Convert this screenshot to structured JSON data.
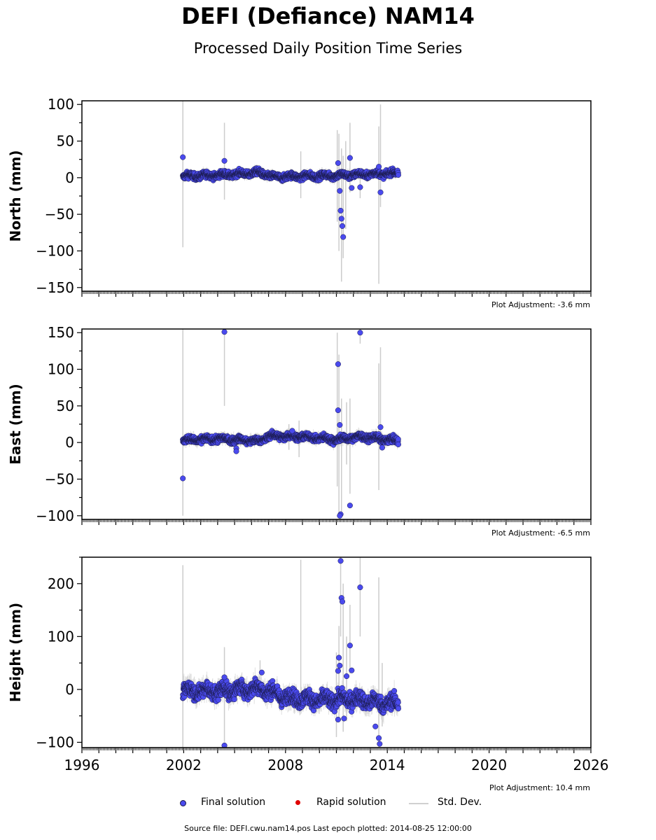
{
  "title": "DEFI (Defiance) NAM14",
  "subtitle": "Processed Daily Position Time Series",
  "source_note": "Source file: DEFI.cwu.nam14.pos  Last epoch plotted: 2014-08-25 12:00:00",
  "colors": {
    "final": "#4a4aee",
    "rapid": "#e00000",
    "stddev": "#cccccc",
    "edge": "#1a1a4a"
  },
  "legend": {
    "final": "Final solution",
    "rapid": "Rapid solution",
    "stddev": "Std. Dev."
  },
  "chart_data": [
    {
      "type": "scatter",
      "panel": "north",
      "ylabel": "North (mm)",
      "adjustment": "Plot Adjustment: -3.6 mm",
      "xlim": [
        1996,
        2026
      ],
      "ylim": [
        -155,
        105
      ],
      "yticks": [
        -150,
        -100,
        -50,
        0,
        50,
        100
      ],
      "data_start": 2001.95,
      "data_end": 2014.65,
      "baseline": [
        [
          2001.95,
          2
        ],
        [
          2004.5,
          4
        ],
        [
          2006.5,
          7
        ],
        [
          2007.2,
          1
        ],
        [
          2009,
          2
        ],
        [
          2011,
          3
        ],
        [
          2013,
          5
        ],
        [
          2014.65,
          6
        ]
      ],
      "spread": 3,
      "typical_error": 5,
      "outliers": [
        [
          2001.95,
          28
        ],
        [
          2004.4,
          23
        ],
        [
          2011.1,
          20
        ],
        [
          2011.2,
          -18
        ],
        [
          2011.25,
          -45
        ],
        [
          2011.3,
          -56
        ],
        [
          2011.35,
          -66
        ],
        [
          2011.4,
          -81
        ],
        [
          2011.8,
          27
        ],
        [
          2011.9,
          -14
        ],
        [
          2012.4,
          -13
        ],
        [
          2013.5,
          15
        ],
        [
          2013.6,
          -20
        ]
      ],
      "error_bars": [
        [
          2001.95,
          -95,
          105
        ],
        [
          2004.4,
          -30,
          75
        ],
        [
          2008.9,
          -28,
          36
        ],
        [
          2011.05,
          -60,
          65
        ],
        [
          2011.15,
          -100,
          60
        ],
        [
          2011.3,
          -142,
          40
        ],
        [
          2011.4,
          -110,
          30
        ],
        [
          2011.55,
          -70,
          50
        ],
        [
          2011.8,
          -20,
          75
        ],
        [
          2012.4,
          -28,
          5
        ],
        [
          2013.5,
          -145,
          70
        ],
        [
          2013.6,
          -40,
          100
        ]
      ]
    },
    {
      "type": "scatter",
      "panel": "east",
      "ylabel": "East (mm)",
      "adjustment": "Plot Adjustment: -6.5 mm",
      "xlim": [
        1996,
        2026
      ],
      "ylim": [
        -105,
        155
      ],
      "yticks": [
        -100,
        -50,
        0,
        50,
        100,
        150
      ],
      "data_start": 2001.95,
      "data_end": 2014.65,
      "baseline": [
        [
          2001.95,
          3
        ],
        [
          2004,
          5
        ],
        [
          2006.5,
          2
        ],
        [
          2007,
          9
        ],
        [
          2009,
          8
        ],
        [
          2011,
          4
        ],
        [
          2012.5,
          8
        ],
        [
          2014.65,
          2
        ]
      ],
      "spread": 3,
      "typical_error": 6,
      "outliers": [
        [
          2001.95,
          -49
        ],
        [
          2004.4,
          151
        ],
        [
          2005.1,
          -8
        ],
        [
          2005.1,
          -12
        ],
        [
          2008.4,
          16
        ],
        [
          2011.1,
          107
        ],
        [
          2011.1,
          44
        ],
        [
          2011.2,
          24
        ],
        [
          2011.25,
          -98
        ],
        [
          2011.2,
          -100
        ],
        [
          2011.8,
          -86
        ],
        [
          2012.4,
          150
        ],
        [
          2013.6,
          21
        ],
        [
          2013.7,
          -7
        ]
      ],
      "error_bars": [
        [
          2001.95,
          -100,
          155
        ],
        [
          2004.4,
          50,
          155
        ],
        [
          2008.2,
          -10,
          25
        ],
        [
          2008.8,
          -20,
          30
        ],
        [
          2011.05,
          -60,
          150
        ],
        [
          2011.15,
          -100,
          120
        ],
        [
          2011.3,
          -100,
          60
        ],
        [
          2011.6,
          -30,
          55
        ],
        [
          2011.8,
          -70,
          60
        ],
        [
          2012.4,
          135,
          155
        ],
        [
          2013.5,
          -65,
          108
        ],
        [
          2013.6,
          -10,
          130
        ]
      ]
    },
    {
      "type": "scatter",
      "panel": "height",
      "ylabel": "Height (mm)",
      "adjustment": "Plot Adjustment: 10.4 mm",
      "xlim": [
        1996,
        2026
      ],
      "ylim": [
        -110,
        250
      ],
      "yticks": [
        -100,
        0,
        100,
        200
      ],
      "xticks": [
        1996,
        2002,
        2008,
        2014,
        2020,
        2026
      ],
      "data_start": 2001.95,
      "data_end": 2014.65,
      "baseline": [
        [
          2001.95,
          -2
        ],
        [
          2004,
          -3
        ],
        [
          2006.5,
          2
        ],
        [
          2008,
          -15
        ],
        [
          2010,
          -20
        ],
        [
          2012,
          -18
        ],
        [
          2013.5,
          -25
        ],
        [
          2014.65,
          -27
        ]
      ],
      "spread": 10,
      "typical_error": 15,
      "outliers": [
        [
          2004.4,
          23
        ],
        [
          2004.4,
          -106
        ],
        [
          2006.6,
          32
        ],
        [
          2011.1,
          35
        ],
        [
          2011.15,
          60
        ],
        [
          2011.2,
          45
        ],
        [
          2011.25,
          243
        ],
        [
          2011.3,
          173
        ],
        [
          2011.35,
          166
        ],
        [
          2011.45,
          -55
        ],
        [
          2011.6,
          25
        ],
        [
          2011.8,
          83
        ],
        [
          2011.9,
          36
        ],
        [
          2012.4,
          193
        ],
        [
          2013.3,
          -70
        ],
        [
          2013.5,
          -92
        ],
        [
          2013.55,
          -103
        ],
        [
          2011.1,
          -57
        ]
      ],
      "error_bars": [
        [
          2001.95,
          -110,
          235
        ],
        [
          2004.4,
          -100,
          80
        ],
        [
          2006.5,
          -5,
          55
        ],
        [
          2008.9,
          -40,
          245
        ],
        [
          2011.0,
          -90,
          70
        ],
        [
          2011.15,
          -60,
          120
        ],
        [
          2011.25,
          100,
          250
        ],
        [
          2011.4,
          -80,
          200
        ],
        [
          2011.6,
          -60,
          100
        ],
        [
          2011.8,
          30,
          160
        ],
        [
          2012.4,
          100,
          250
        ],
        [
          2013.5,
          -110,
          212
        ],
        [
          2013.7,
          -70,
          50
        ]
      ]
    }
  ]
}
